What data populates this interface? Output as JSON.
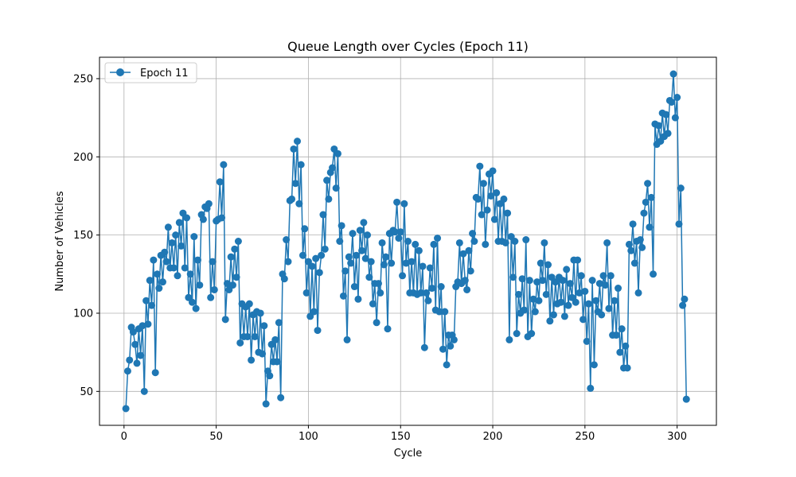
{
  "chart_data": {
    "type": "line",
    "title": "Queue Length over Cycles (Epoch 11)",
    "xlabel": "Cycle",
    "ylabel": "Number of Vehicles",
    "xlim": [
      -13.3,
      321.3
    ],
    "ylim": [
      28.3,
      263.7
    ],
    "xticks": [
      0,
      50,
      100,
      150,
      200,
      250,
      300
    ],
    "yticks": [
      50,
      100,
      150,
      200,
      250
    ],
    "grid": true,
    "legend_position": "top-left",
    "color": "#1f77b4",
    "series": [
      {
        "name": "Epoch 11",
        "x_start": 1,
        "values": [
          39,
          63,
          70,
          91,
          88,
          80,
          68,
          90,
          73,
          92,
          50,
          108,
          93,
          121,
          105,
          134,
          62,
          125,
          116,
          137,
          120,
          139,
          133,
          155,
          129,
          145,
          129,
          150,
          124,
          158,
          143,
          164,
          129,
          161,
          110,
          125,
          107,
          149,
          103,
          134,
          118,
          163,
          160,
          168,
          167,
          170,
          110,
          133,
          115,
          159,
          160,
          184,
          161,
          195,
          96,
          119,
          115,
          136,
          118,
          141,
          123,
          146,
          81,
          106,
          85,
          104,
          85,
          106,
          70,
          99,
          85,
          101,
          75,
          100,
          74,
          92,
          42,
          63,
          60,
          80,
          69,
          83,
          69,
          94,
          46,
          125,
          122,
          147,
          133,
          172,
          173,
          205,
          183,
          210,
          170,
          195,
          137,
          154,
          113,
          133,
          98,
          130,
          101,
          135,
          89,
          126,
          137,
          163,
          141,
          185,
          173,
          190,
          193,
          205,
          180,
          202,
          146,
          156,
          111,
          127,
          83,
          136,
          132,
          151,
          117,
          137,
          109,
          153,
          140,
          158,
          135,
          150,
          123,
          133,
          106,
          119,
          94,
          119,
          113,
          145,
          131,
          136,
          90,
          151,
          132,
          153,
          152,
          171,
          148,
          152,
          124,
          170,
          132,
          146,
          113,
          133,
          113,
          144,
          112,
          140,
          113,
          130,
          78,
          113,
          108,
          129,
          116,
          144,
          102,
          148,
          101,
          117,
          77,
          101,
          67,
          86,
          79,
          86,
          83,
          117,
          120,
          145,
          119,
          138,
          121,
          115,
          140,
          127,
          151,
          146,
          174,
          173,
          194,
          163,
          183,
          144,
          166,
          189,
          175,
          191,
          160,
          177,
          146,
          170,
          146,
          173,
          145,
          164,
          83,
          149,
          123,
          146,
          87,
          112,
          100,
          122,
          102,
          147,
          85,
          121,
          87,
          109,
          101,
          120,
          108,
          132,
          121,
          145,
          112,
          131,
          95,
          123,
          99,
          120,
          106,
          123,
          107,
          121,
          98,
          128,
          105,
          119,
          110,
          134,
          107,
          134,
          113,
          124,
          96,
          114,
          82,
          106,
          52,
          121,
          67,
          108,
          101,
          119,
          99,
          124,
          118,
          145,
          103,
          124,
          86,
          108,
          86,
          116,
          75,
          90,
          65,
          79,
          65,
          144,
          140,
          157,
          132,
          146,
          113,
          147,
          142,
          164,
          171,
          183,
          155,
          174,
          125,
          221,
          208,
          220,
          210,
          228,
          213,
          227,
          215,
          236,
          235,
          253,
          225,
          238,
          157,
          180,
          105,
          109,
          45
        ]
      }
    ]
  }
}
